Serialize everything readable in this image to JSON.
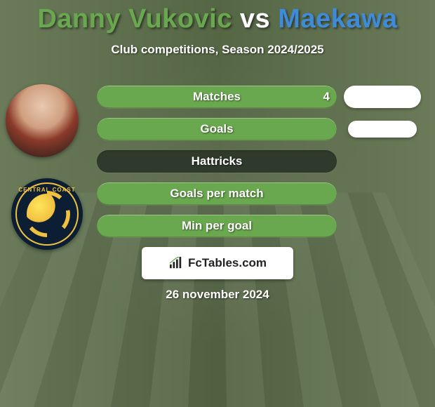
{
  "title": {
    "player1": "Danny Vukovic",
    "vs": "vs",
    "player2": "Maekawa",
    "player1_color": "#6aa84f",
    "vs_color": "#ffffff",
    "player2_color": "#3d8bd9"
  },
  "subtitle": "Club competitions, Season 2024/2025",
  "stats": {
    "background_color": "#2f3a2c",
    "fill_color": "#6aa84f",
    "rows": [
      {
        "label": "Matches",
        "value_left": "4",
        "fill_pct": 100,
        "right_pill": "wide"
      },
      {
        "label": "Goals",
        "value_left": "",
        "fill_pct": 100,
        "right_pill": "narrow"
      },
      {
        "label": "Hattricks",
        "value_left": "",
        "fill_pct": 0,
        "right_pill": null
      },
      {
        "label": "Goals per match",
        "value_left": "",
        "fill_pct": 100,
        "right_pill": null
      },
      {
        "label": "Min per goal",
        "value_left": "",
        "fill_pct": 100,
        "right_pill": null
      }
    ]
  },
  "logo_text": "FcTables.com",
  "date_text": "26 november 2024",
  "colors": {
    "white": "#ffffff",
    "dark_text": "#222222"
  }
}
